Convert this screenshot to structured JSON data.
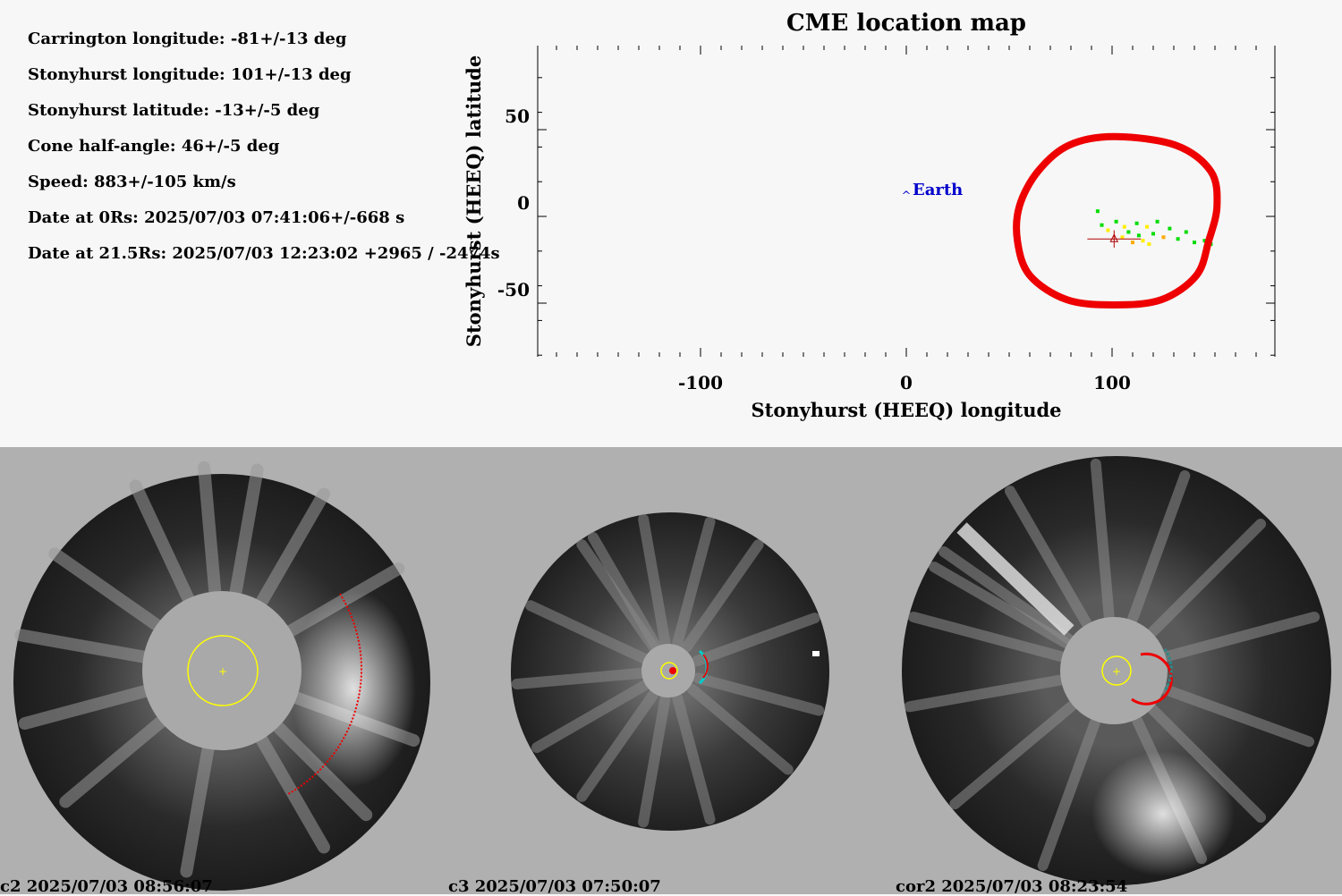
{
  "parameters": [
    "Carrington longitude: -81+/-13 deg",
    "Stonyhurst longitude: 101+/-13 deg",
    "Stonyhurst latitude: -13+/-5 deg",
    "Cone half-angle: 46+/-5 deg",
    "Speed: 883+/-105 km/s",
    "Date at 0Rs: 2025/07/03 07:41:06+/-668 s",
    "Date at 21.5Rs: 2025/07/03 12:23:02 +2965 / -2474s"
  ],
  "chart_data": {
    "type": "scatter",
    "title": "CME location map",
    "xlabel": "Stonyhurst (HEEQ) longitude",
    "ylabel": "Stonyhurst (HEEQ) latitude",
    "xlim": [
      -180,
      180
    ],
    "ylim": [
      -90,
      90
    ],
    "xticks": [
      -100,
      0,
      100
    ],
    "yticks": [
      50,
      0,
      -50
    ],
    "grid": false,
    "earth": {
      "label": "Earth",
      "lon": 0,
      "lat": 15,
      "color": "#0000cc"
    },
    "cme_center": {
      "lon": 101,
      "lat": -13,
      "lon_err": 13,
      "lat_err": 5,
      "color": "#b00000"
    },
    "cme_boundary": {
      "color": "#ee0000",
      "points": [
        [
          101,
          46
        ],
        [
          131,
          41
        ],
        [
          148,
          26
        ],
        [
          151,
          6
        ],
        [
          147,
          -14
        ],
        [
          141,
          -34
        ],
        [
          124,
          -48
        ],
        [
          101,
          -51
        ],
        [
          78,
          -48
        ],
        [
          60,
          -34
        ],
        [
          54,
          -14
        ],
        [
          55,
          6
        ],
        [
          64,
          26
        ],
        [
          79,
          41
        ]
      ]
    },
    "scatter_points": [
      {
        "lon": 95,
        "lat": -5,
        "color": "#00dd00"
      },
      {
        "lon": 98,
        "lat": -8,
        "color": "#ffee00"
      },
      {
        "lon": 102,
        "lat": -3,
        "color": "#00dd00"
      },
      {
        "lon": 105,
        "lat": -12,
        "color": "#ffee00"
      },
      {
        "lon": 108,
        "lat": -9,
        "color": "#00dd00"
      },
      {
        "lon": 110,
        "lat": -15,
        "color": "#ffaa00"
      },
      {
        "lon": 112,
        "lat": -4,
        "color": "#00dd00"
      },
      {
        "lon": 115,
        "lat": -14,
        "color": "#ffee00"
      },
      {
        "lon": 117,
        "lat": -6,
        "color": "#ffee00"
      },
      {
        "lon": 120,
        "lat": -10,
        "color": "#00dd00"
      },
      {
        "lon": 122,
        "lat": -3,
        "color": "#00dd00"
      },
      {
        "lon": 125,
        "lat": -12,
        "color": "#ffaa00"
      },
      {
        "lon": 128,
        "lat": -7,
        "color": "#00dd00"
      },
      {
        "lon": 132,
        "lat": -13,
        "color": "#00dd00"
      },
      {
        "lon": 136,
        "lat": -9,
        "color": "#00dd00"
      },
      {
        "lon": 140,
        "lat": -15,
        "color": "#00dd00"
      },
      {
        "lon": 145,
        "lat": -14,
        "color": "#00dd00"
      },
      {
        "lon": 148,
        "lat": -16,
        "color": "#00dd00"
      },
      {
        "lon": 93,
        "lat": 3,
        "color": "#00dd00"
      },
      {
        "lon": 118,
        "lat": -16,
        "color": "#ffee00"
      },
      {
        "lon": 113,
        "lat": -11,
        "color": "#00dd00"
      },
      {
        "lon": 106,
        "lat": -6,
        "color": "#ffee00"
      }
    ]
  },
  "images": [
    {
      "caption": "c2 2025/07/03 08:56:07"
    },
    {
      "caption": "c3 2025/07/03 07:50:07"
    },
    {
      "caption": "cor2 2025/07/03 08:23:54"
    }
  ],
  "colors": {
    "bottom_background": "#b0b0b0",
    "sun_circle": "#ffff00",
    "fit_arc": "#ee0000",
    "occulter": "#a9a9a9"
  }
}
